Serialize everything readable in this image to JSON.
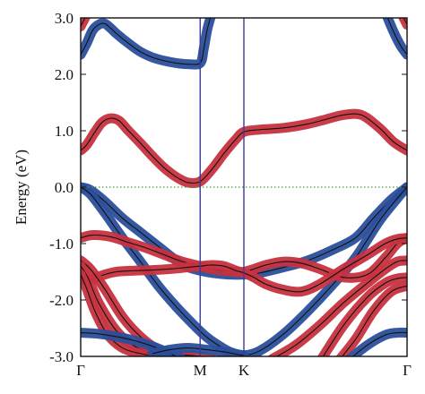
{
  "chart_data": {
    "type": "line",
    "title": "",
    "xlabel": "",
    "ylabel": "Energy (eV)",
    "ylim": [
      -3.0,
      3.0
    ],
    "xlim": [
      0,
      2.732
    ],
    "y_ticks": [
      {
        "value": 3.0,
        "label": "3.0"
      },
      {
        "value": 2.0,
        "label": "2.0"
      },
      {
        "value": 1.0,
        "label": "1.0"
      },
      {
        "value": 0.0,
        "label": "0.0"
      },
      {
        "value": -1.0,
        "label": "-1.0"
      },
      {
        "value": -2.0,
        "label": "-2.0"
      },
      {
        "value": -3.0,
        "label": "-3.0"
      }
    ],
    "high_symmetry_points": [
      {
        "label": "Γ",
        "x": 0
      },
      {
        "label": "M",
        "x": 1.0
      },
      {
        "label": "K",
        "x": 1.366
      },
      {
        "label": "Γ",
        "x": 2.732
      }
    ],
    "fermi_level": 0.0,
    "grid": false,
    "legend": "none",
    "colors": {
      "red_character": "#c8323f",
      "blue_character": "#2a4f9c",
      "band_line": "#111111",
      "vertical_lines": "#3a3a9a",
      "fermi_line": "#3f9a3f"
    },
    "series": [
      {
        "color": "red_character",
        "x": [
          0,
          0.05,
          0.12,
          0.18,
          0.25,
          0.32,
          0.4,
          0.5,
          0.6,
          0.7,
          0.8,
          0.9,
          1.0,
          1.1,
          1.2,
          1.3,
          1.366,
          1.5,
          1.7,
          1.9,
          2.05,
          2.2,
          2.35,
          2.5,
          2.62,
          2.732
        ],
        "y": [
          0.65,
          0.75,
          0.98,
          1.15,
          1.22,
          1.18,
          1.0,
          0.78,
          0.55,
          0.34,
          0.18,
          0.08,
          0.1,
          0.32,
          0.6,
          0.85,
          0.98,
          1.02,
          1.05,
          1.12,
          1.2,
          1.28,
          1.28,
          1.05,
          0.8,
          0.65
        ]
      },
      {
        "color": "blue_character",
        "x": [
          0,
          0.05,
          0.1,
          0.15,
          0.2,
          0.25,
          0.3,
          0.4,
          0.5,
          0.6,
          0.7,
          0.8,
          0.9,
          1.0,
          1.03,
          1.06,
          1.1
        ],
        "y": [
          2.35,
          2.55,
          2.78,
          2.88,
          2.9,
          2.82,
          2.72,
          2.55,
          2.4,
          2.3,
          2.24,
          2.2,
          2.18,
          2.2,
          2.45,
          2.8,
          3.1
        ]
      },
      {
        "color": "blue_character",
        "x": [
          2.55,
          2.62,
          2.68,
          2.732
        ],
        "y": [
          3.1,
          2.75,
          2.5,
          2.35
        ]
      },
      {
        "color": "red_character",
        "x": [
          0,
          0.06
        ],
        "y": [
          2.85,
          3.1
        ]
      },
      {
        "color": "red_character",
        "x": [
          2.68,
          2.732
        ],
        "y": [
          3.1,
          2.88
        ]
      },
      {
        "color": "blue_character",
        "x": [
          0,
          0.08,
          0.2,
          0.35,
          0.5,
          0.65,
          0.8,
          0.9,
          1.0,
          1.1,
          1.25,
          1.366,
          1.5,
          1.7,
          1.9,
          2.1,
          2.3,
          2.45,
          2.6,
          2.732
        ],
        "y": [
          0.0,
          -0.05,
          -0.25,
          -0.55,
          -0.8,
          -1.05,
          -1.3,
          -1.42,
          -1.48,
          -1.52,
          -1.55,
          -1.55,
          -1.52,
          -1.42,
          -1.3,
          -1.12,
          -0.9,
          -0.55,
          -0.22,
          0.0
        ]
      },
      {
        "color": "blue_character",
        "x": [
          0,
          0.08,
          0.2,
          0.35,
          0.5,
          0.65,
          0.8,
          0.95,
          1.05,
          1.15,
          1.25,
          1.366,
          1.5,
          1.7,
          1.9,
          2.1,
          2.3,
          2.5,
          2.65,
          2.732
        ],
        "y": [
          0.0,
          -0.12,
          -0.45,
          -0.9,
          -1.32,
          -1.75,
          -2.12,
          -2.45,
          -2.65,
          -2.8,
          -2.92,
          -2.98,
          -2.9,
          -2.6,
          -2.2,
          -1.75,
          -1.25,
          -0.6,
          -0.2,
          0.0
        ]
      },
      {
        "color": "red_character",
        "x": [
          0,
          0.1,
          0.25,
          0.4,
          0.55,
          0.7,
          0.85,
          1.0,
          1.1,
          1.2,
          1.3,
          1.366,
          1.45,
          1.55,
          1.7,
          1.85,
          2.0,
          2.2,
          2.4,
          2.55,
          2.65,
          2.732
        ],
        "y": [
          -0.9,
          -0.85,
          -0.88,
          -0.98,
          -1.08,
          -1.2,
          -1.32,
          -1.4,
          -1.45,
          -1.48,
          -1.5,
          -1.5,
          -1.45,
          -1.38,
          -1.32,
          -1.35,
          -1.45,
          -1.6,
          -1.55,
          -1.25,
          -1.0,
          -0.9
        ]
      },
      {
        "color": "red_character",
        "x": [
          0,
          0.1,
          0.2,
          0.3,
          0.45,
          0.6,
          0.75,
          0.9,
          1.0,
          1.1,
          1.2,
          1.3,
          1.366,
          1.45,
          1.55,
          1.7,
          1.85,
          2.0,
          2.2,
          2.4,
          2.55,
          2.65,
          2.732
        ],
        "y": [
          -1.65,
          -1.62,
          -1.55,
          -1.5,
          -1.48,
          -1.47,
          -1.45,
          -1.42,
          -1.4,
          -1.38,
          -1.4,
          -1.48,
          -1.52,
          -1.6,
          -1.72,
          -1.82,
          -1.85,
          -1.72,
          -1.45,
          -1.2,
          -1.0,
          -0.92,
          -0.9
        ]
      },
      {
        "color": "red_character",
        "x": [
          0,
          0.08,
          0.2,
          0.35,
          0.5,
          0.65,
          0.8,
          0.95,
          1.05,
          1.15
        ],
        "y": [
          -1.3,
          -1.45,
          -1.8,
          -2.3,
          -2.65,
          -2.88,
          -2.98,
          -3.05,
          -3.08,
          -3.1
        ]
      },
      {
        "color": "red_character",
        "x": [
          0,
          0.06,
          0.15,
          0.3,
          0.45,
          0.6,
          0.75,
          0.9,
          1.0,
          1.1
        ],
        "y": [
          -1.4,
          -1.6,
          -2.05,
          -2.55,
          -2.82,
          -2.92,
          -2.96,
          -2.98,
          -3.0,
          -3.05
        ]
      },
      {
        "color": "red_character",
        "x": [
          0,
          0.05,
          0.12,
          0.22,
          0.35,
          0.5,
          0.65,
          0.8,
          0.92
        ],
        "y": [
          -1.55,
          -1.8,
          -2.2,
          -2.6,
          -2.85,
          -2.95,
          -3.0,
          -3.05,
          -3.1
        ]
      },
      {
        "color": "red_character",
        "x": [
          2.0,
          2.2,
          2.4,
          2.55,
          2.65,
          2.732
        ],
        "y": [
          -3.1,
          -2.45,
          -1.95,
          -1.7,
          -1.62,
          -1.6
        ]
      },
      {
        "color": "red_character",
        "x": [
          2.15,
          2.3,
          2.45,
          2.6,
          2.732
        ],
        "y": [
          -3.1,
          -2.7,
          -2.2,
          -1.85,
          -1.75
        ]
      },
      {
        "color": "red_character",
        "x": [
          1.6,
          1.8,
          2.0,
          2.2,
          2.4,
          2.55,
          2.65,
          2.732
        ],
        "y": [
          -3.05,
          -2.8,
          -2.45,
          -2.05,
          -1.7,
          -1.45,
          -1.32,
          -1.3
        ]
      },
      {
        "color": "blue_character",
        "x": [
          0,
          0.15,
          0.3,
          0.45,
          0.6,
          0.75,
          0.85
        ],
        "y": [
          -2.58,
          -2.6,
          -2.65,
          -2.72,
          -2.82,
          -2.95,
          -3.05
        ]
      },
      {
        "color": "blue_character",
        "x": [
          2.25,
          2.4,
          2.55,
          2.65,
          2.732
        ],
        "y": [
          -3.05,
          -2.8,
          -2.62,
          -2.58,
          -2.58
        ]
      },
      {
        "color": "blue_character",
        "x": [
          0.6,
          0.75,
          0.9,
          1.05,
          1.2,
          1.3,
          1.366
        ],
        "y": [
          -2.95,
          -2.88,
          -2.85,
          -2.88,
          -2.92,
          -2.96,
          -2.98
        ]
      }
    ]
  }
}
